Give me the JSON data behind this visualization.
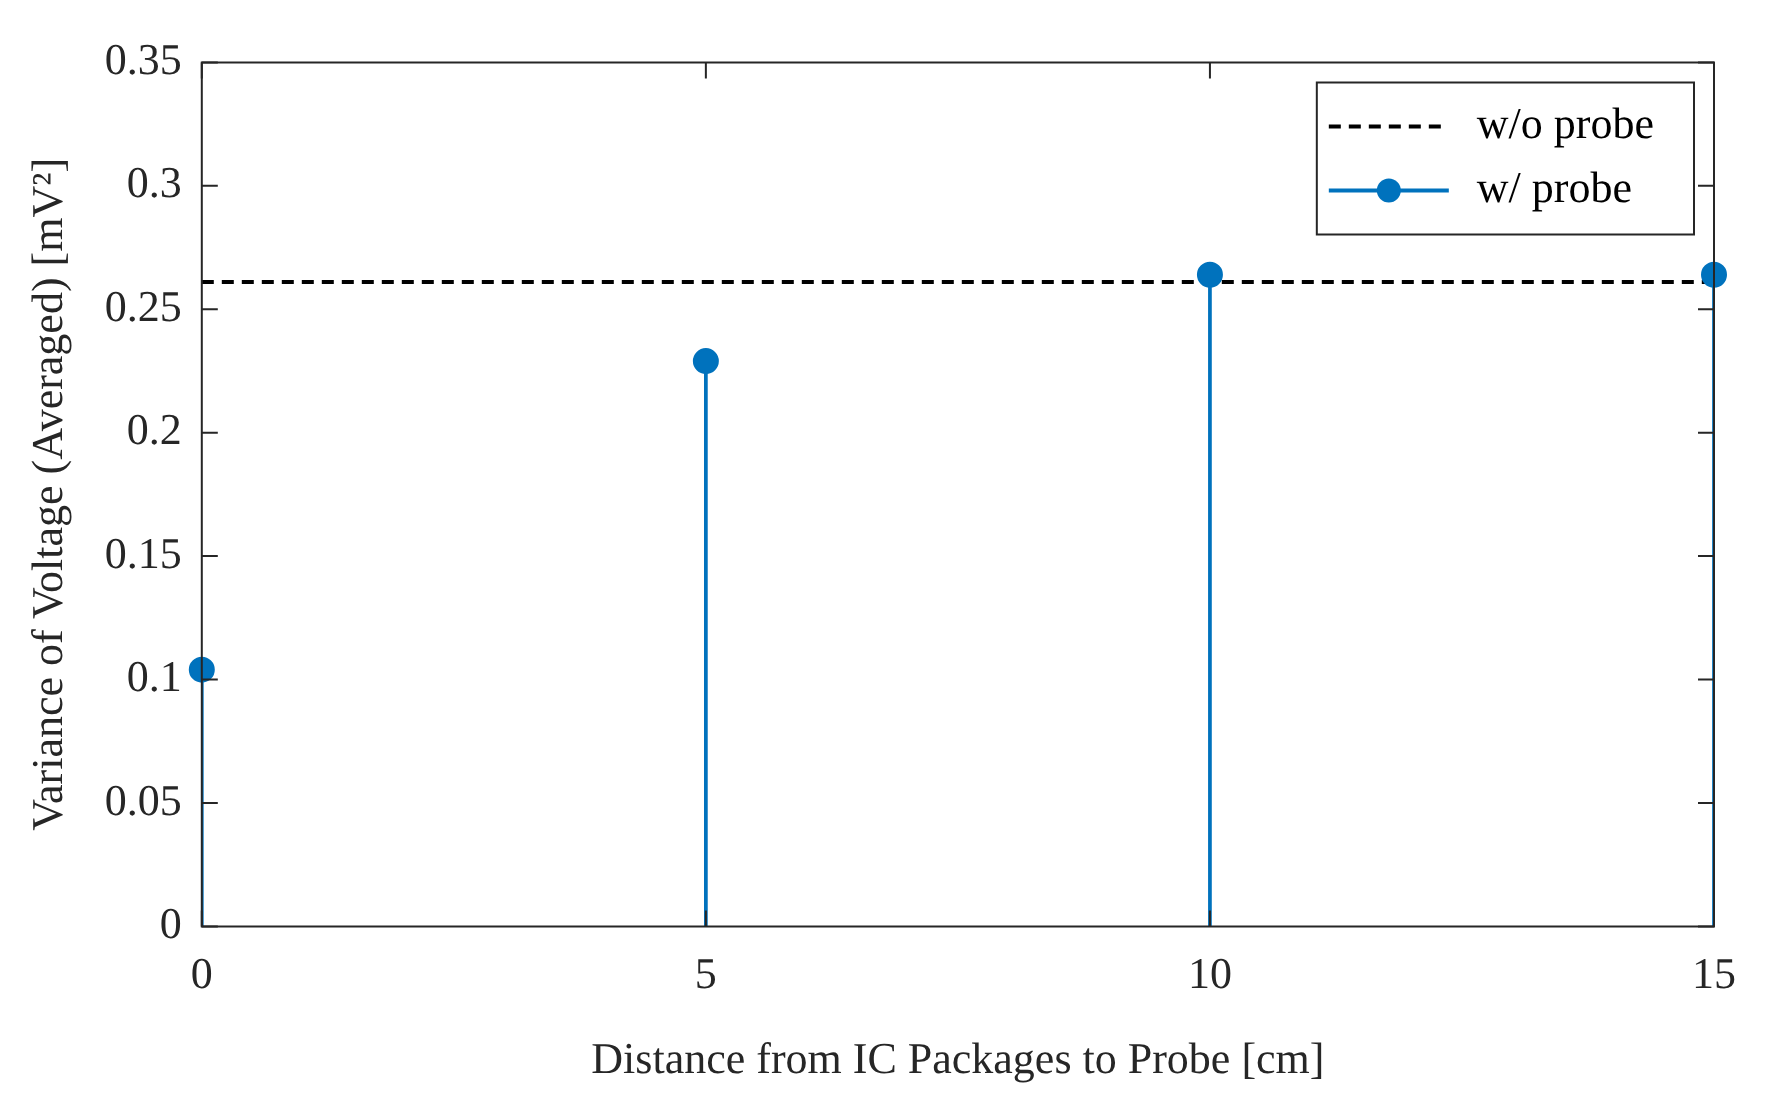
{
  "chart_data": {
    "type": "lollipop",
    "xlabel": "Distance from IC Packages to Probe [cm]",
    "ylabel": "Variance of Voltage (Averaged) [mV²]",
    "x": [
      0,
      5,
      10,
      15
    ],
    "series": [
      {
        "name": "w/ probe",
        "color": "#0072bd",
        "values": [
          0.104,
          0.229,
          0.264,
          0.264
        ]
      }
    ],
    "ref_lines": [
      {
        "axis": "y",
        "value": 0.261,
        "label": "w/o probe",
        "color": "#000000",
        "line_style": "dashed"
      }
    ],
    "xlim": [
      0,
      15
    ],
    "xticks": [
      0,
      5,
      10,
      15
    ],
    "ylim": [
      0,
      0.35
    ],
    "yticks": [
      0,
      0.05,
      0.1,
      0.15,
      0.2,
      0.25,
      0.3,
      0.35
    ],
    "grid": false,
    "legend": "top right",
    "marker": "circle"
  }
}
